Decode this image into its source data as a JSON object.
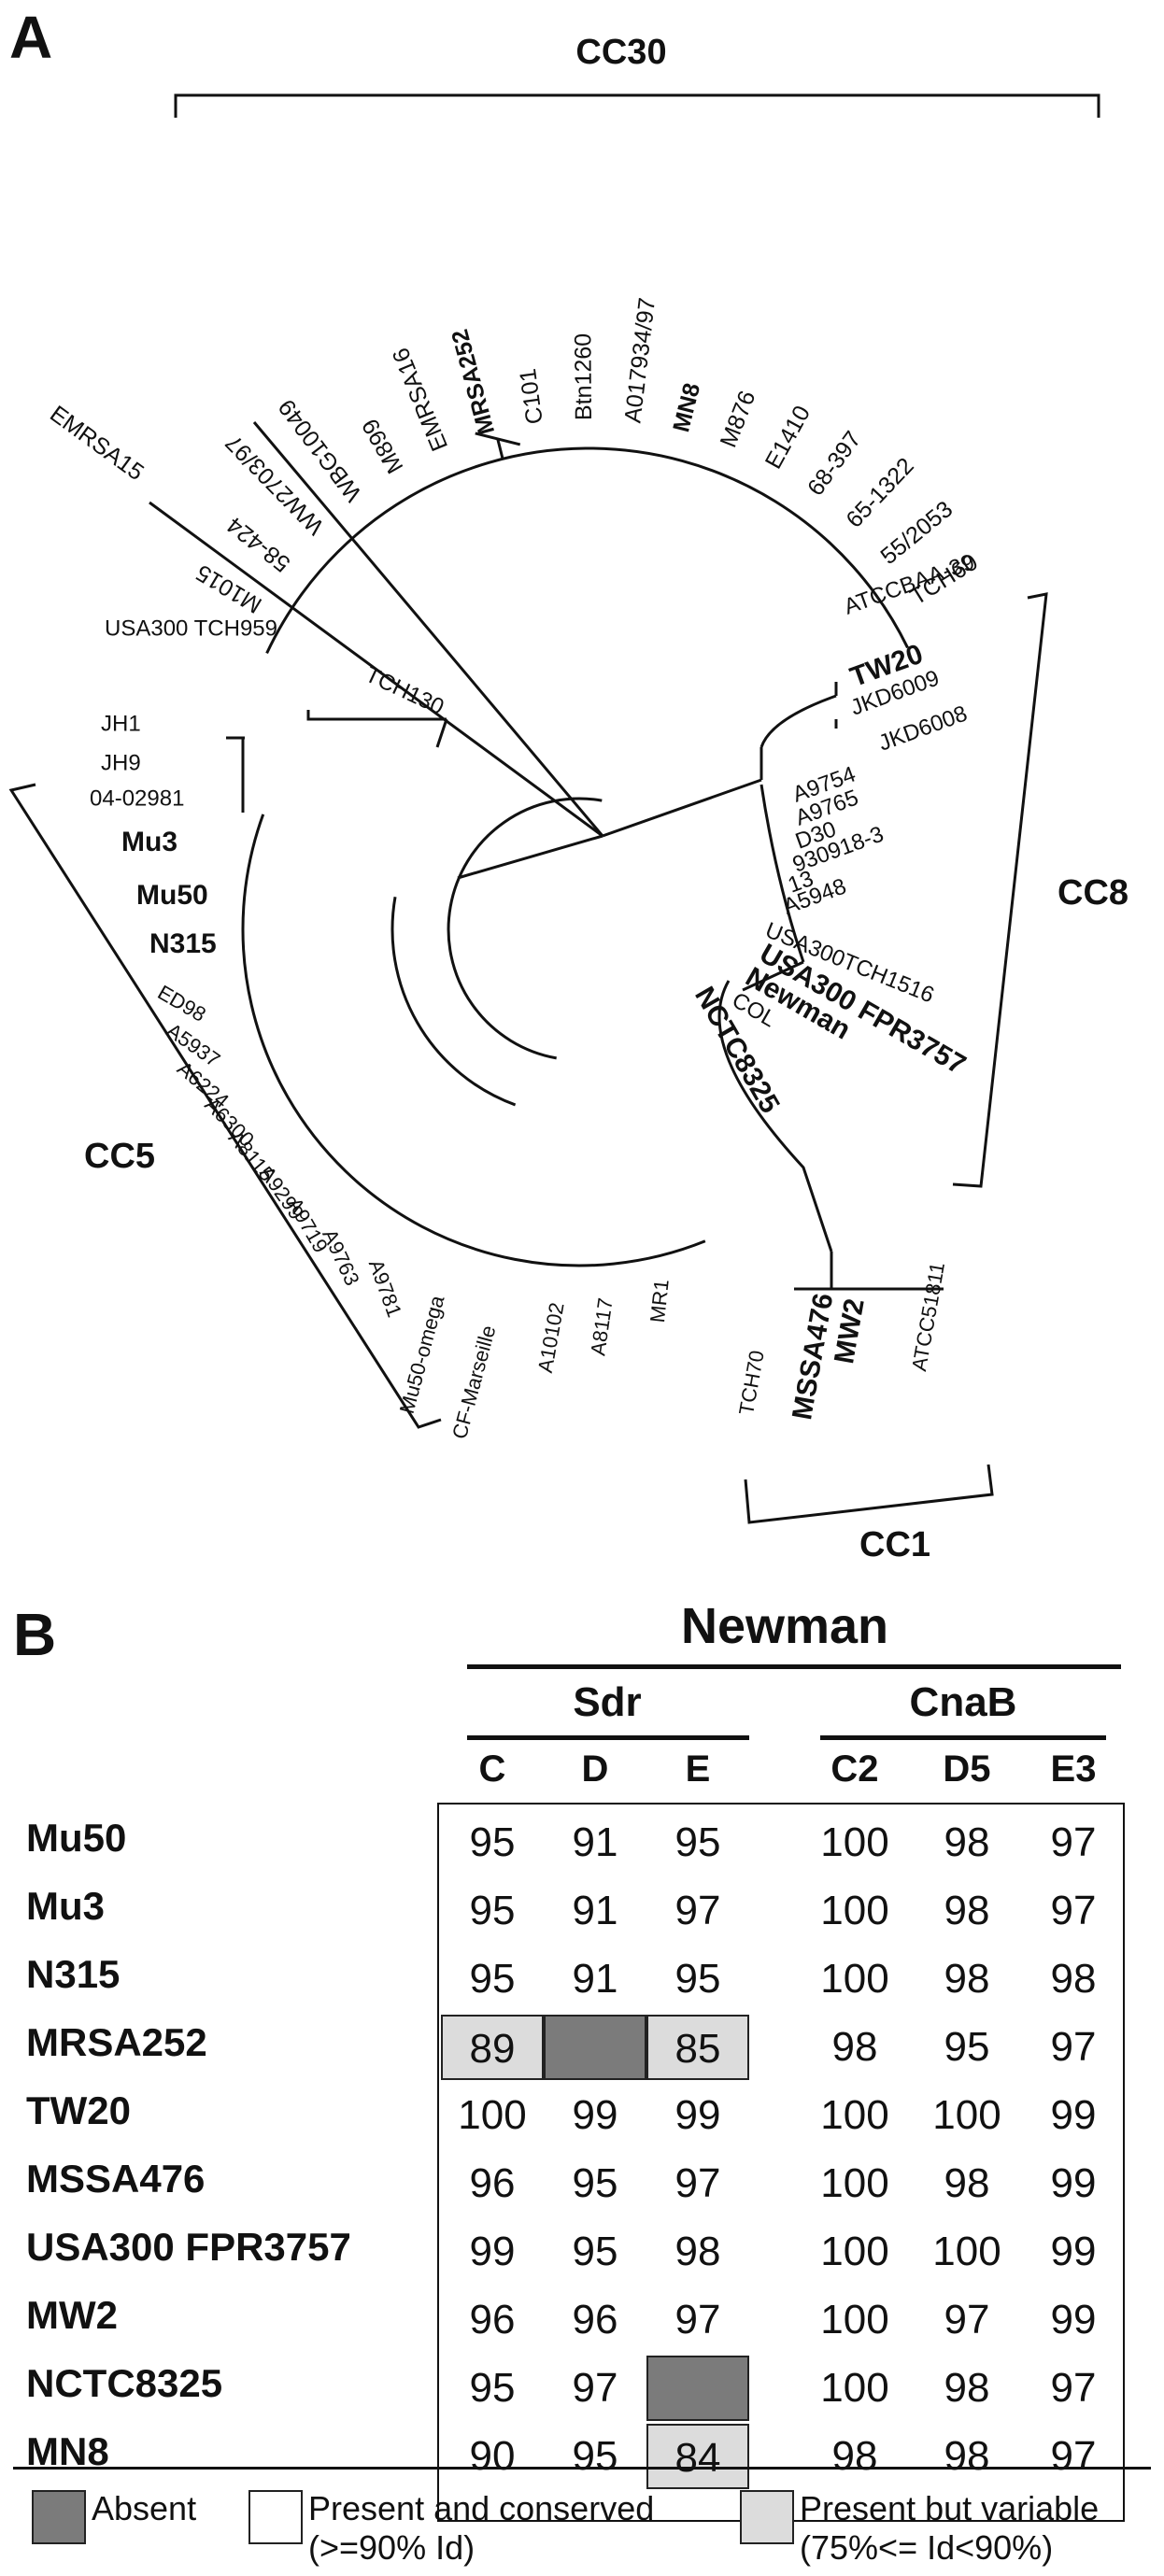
{
  "panel_a": {
    "label": "A",
    "clade_labels": {
      "cc30": "CC30",
      "cc8": "CC8",
      "cc5": "CC5",
      "cc1": "CC1"
    },
    "leaves_cc30": [
      "M1015",
      "58-424",
      "WW2703/97",
      "WBG10049",
      "M899",
      "EMRSA16",
      "MRSA252",
      "C101",
      "Btn1260",
      "A017934/97",
      "MN8",
      "M876",
      "E1410",
      "68-397",
      "65-1322",
      "55/2053",
      "TCH60"
    ],
    "leaf_emrsa15": "EMRSA15",
    "leaves_cc8": [
      "ATCCBAA-39",
      "TW20",
      "JKD6009",
      "JKD6008",
      "A9754",
      "A9765",
      "D30",
      "930918-3",
      "13",
      "A5948",
      "USA300TCH1516",
      "USA300 FPR3757",
      "Newman",
      "COL",
      "NCTC8325"
    ],
    "leaves_cc5_upper": [
      "USA300 TCH959",
      "TCH130",
      "JH1",
      "JH9",
      "04-02981"
    ],
    "leaves_cc5": [
      "Mu3",
      "Mu50",
      "N315",
      "ED98",
      "A5937",
      "A6224",
      "A6300",
      "A8115",
      "A9299",
      "A9719",
      "A9763",
      "A9781",
      "Mu50-omega",
      "CF-Marseille",
      "A10102",
      "A8117",
      "MR1"
    ],
    "leaves_cc1": [
      "TCH70",
      "MSSA476",
      "MW2",
      "ATCC51811"
    ]
  },
  "panel_b": {
    "label": "B",
    "strain_header": "Newman",
    "groups": [
      {
        "name": "Sdr",
        "columns": [
          "C",
          "D",
          "E"
        ]
      },
      {
        "name": "CnaB",
        "columns": [
          "C2",
          "D5",
          "E3"
        ]
      }
    ],
    "rows": [
      {
        "strain": "Mu50",
        "cells": [
          {
            "v": "95",
            "s": "conserved"
          },
          {
            "v": "91",
            "s": "conserved"
          },
          {
            "v": "95",
            "s": "conserved"
          },
          {
            "v": "100",
            "s": "conserved"
          },
          {
            "v": "98",
            "s": "conserved"
          },
          {
            "v": "97",
            "s": "conserved"
          }
        ]
      },
      {
        "strain": "Mu3",
        "cells": [
          {
            "v": "95",
            "s": "conserved"
          },
          {
            "v": "91",
            "s": "conserved"
          },
          {
            "v": "97",
            "s": "conserved"
          },
          {
            "v": "100",
            "s": "conserved"
          },
          {
            "v": "98",
            "s": "conserved"
          },
          {
            "v": "97",
            "s": "conserved"
          }
        ]
      },
      {
        "strain": "N315",
        "cells": [
          {
            "v": "95",
            "s": "conserved"
          },
          {
            "v": "91",
            "s": "conserved"
          },
          {
            "v": "95",
            "s": "conserved"
          },
          {
            "v": "100",
            "s": "conserved"
          },
          {
            "v": "98",
            "s": "conserved"
          },
          {
            "v": "98",
            "s": "conserved"
          }
        ]
      },
      {
        "strain": "MRSA252",
        "cells": [
          {
            "v": "89",
            "s": "variable"
          },
          {
            "v": "",
            "s": "absent"
          },
          {
            "v": "85",
            "s": "variable"
          },
          {
            "v": "98",
            "s": "conserved"
          },
          {
            "v": "95",
            "s": "conserved"
          },
          {
            "v": "97",
            "s": "conserved"
          }
        ]
      },
      {
        "strain": "TW20",
        "cells": [
          {
            "v": "100",
            "s": "conserved"
          },
          {
            "v": "99",
            "s": "conserved"
          },
          {
            "v": "99",
            "s": "conserved"
          },
          {
            "v": "100",
            "s": "conserved"
          },
          {
            "v": "100",
            "s": "conserved"
          },
          {
            "v": "99",
            "s": "conserved"
          }
        ]
      },
      {
        "strain": "MSSA476",
        "cells": [
          {
            "v": "96",
            "s": "conserved"
          },
          {
            "v": "95",
            "s": "conserved"
          },
          {
            "v": "97",
            "s": "conserved"
          },
          {
            "v": "100",
            "s": "conserved"
          },
          {
            "v": "98",
            "s": "conserved"
          },
          {
            "v": "99",
            "s": "conserved"
          }
        ]
      },
      {
        "strain": "USA300 FPR3757",
        "cells": [
          {
            "v": "99",
            "s": "conserved"
          },
          {
            "v": "95",
            "s": "conserved"
          },
          {
            "v": "98",
            "s": "conserved"
          },
          {
            "v": "100",
            "s": "conserved"
          },
          {
            "v": "100",
            "s": "conserved"
          },
          {
            "v": "99",
            "s": "conserved"
          }
        ]
      },
      {
        "strain": "MW2",
        "cells": [
          {
            "v": "96",
            "s": "conserved"
          },
          {
            "v": "96",
            "s": "conserved"
          },
          {
            "v": "97",
            "s": "conserved"
          },
          {
            "v": "100",
            "s": "conserved"
          },
          {
            "v": "97",
            "s": "conserved"
          },
          {
            "v": "99",
            "s": "conserved"
          }
        ]
      },
      {
        "strain": "NCTC8325",
        "cells": [
          {
            "v": "95",
            "s": "conserved"
          },
          {
            "v": "97",
            "s": "conserved"
          },
          {
            "v": "",
            "s": "absent"
          },
          {
            "v": "100",
            "s": "conserved"
          },
          {
            "v": "98",
            "s": "conserved"
          },
          {
            "v": "97",
            "s": "conserved"
          }
        ]
      },
      {
        "strain": "MN8",
        "cells": [
          {
            "v": "90",
            "s": "conserved"
          },
          {
            "v": "95",
            "s": "conserved"
          },
          {
            "v": "84",
            "s": "variable"
          },
          {
            "v": "98",
            "s": "conserved"
          },
          {
            "v": "98",
            "s": "conserved"
          },
          {
            "v": "97",
            "s": "conserved"
          }
        ]
      }
    ],
    "legend": [
      {
        "key": "absent",
        "line1": "Absent",
        "line2": "",
        "color": "#7b7b7b"
      },
      {
        "key": "conserved",
        "line1": "Present and conserved",
        "line2": "(>=90% Id)",
        "color": "#ffffff"
      },
      {
        "key": "variable",
        "line1": "Present but variable",
        "line2": "(75%<= Id<90%)",
        "color": "#dcdcdc"
      }
    ]
  }
}
